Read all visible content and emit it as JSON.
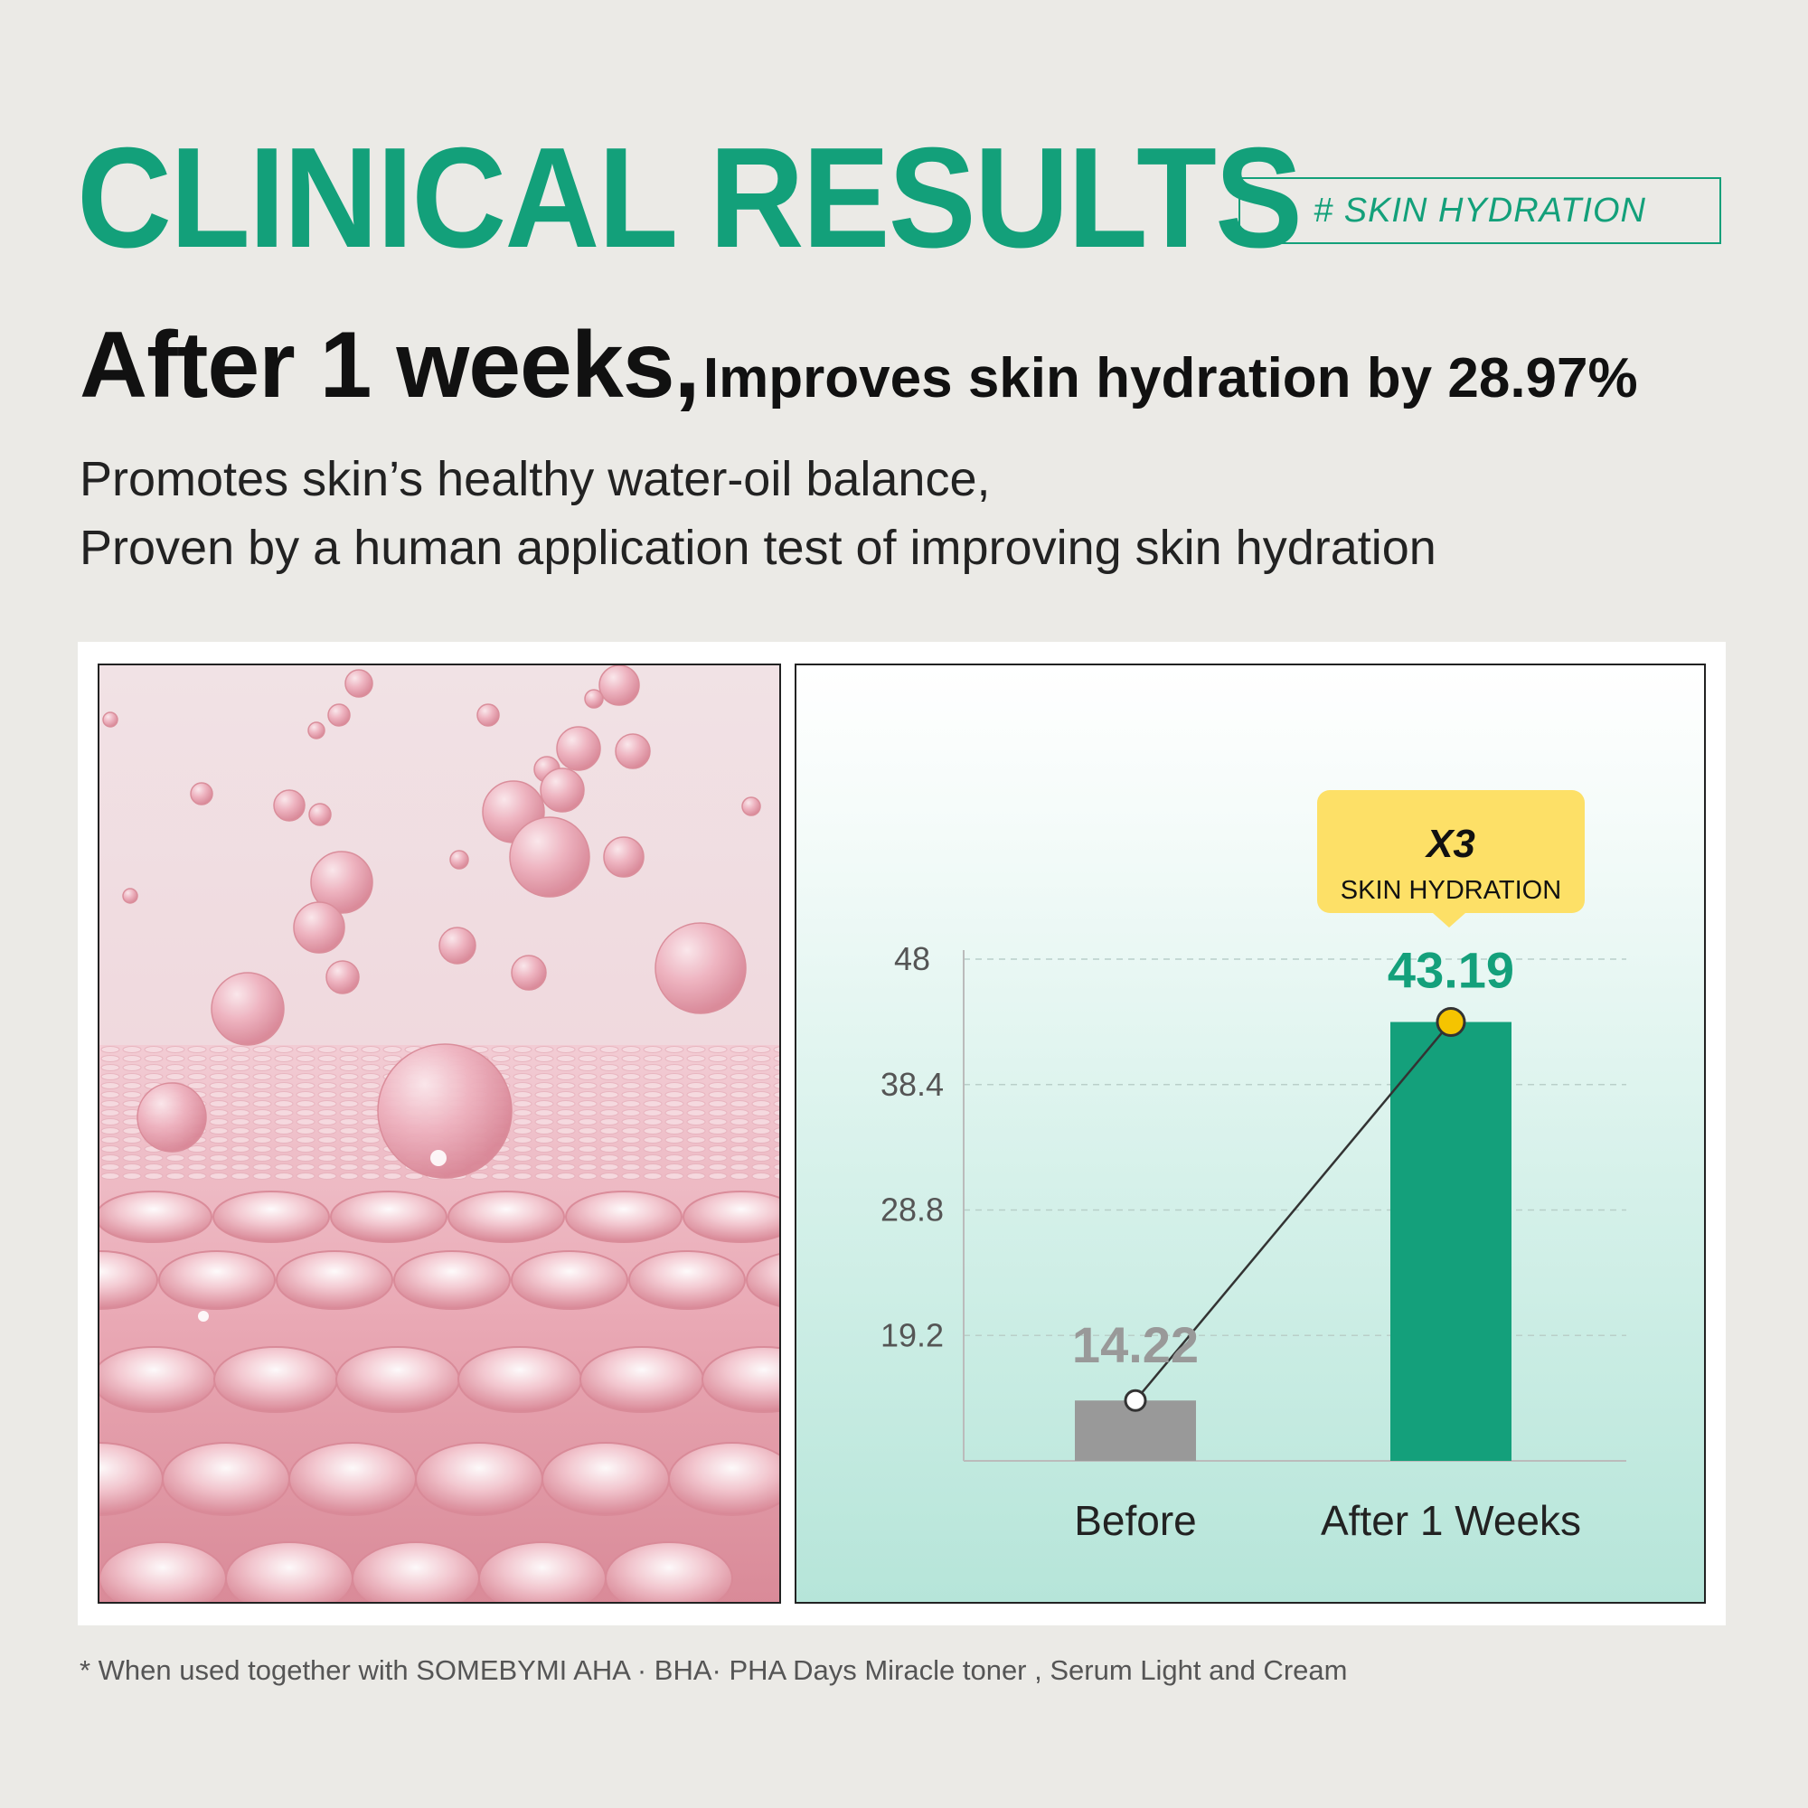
{
  "header": {
    "title": "CLINICAL RESULTS",
    "tag": "# SKIN HYDRATION",
    "headline_big": "After 1 weeks,",
    "headline_small": "Improves skin hydration by 28.97%",
    "desc_line1": "Promotes skin’s healthy water-oil balance,",
    "desc_line2": "Proven by a human application test of improving skin hydration"
  },
  "photo": {
    "icon": "hydration-skin-illustration"
  },
  "callout": {
    "multiplier": "X3",
    "label": "SKIN HYDRATION"
  },
  "chart_data": {
    "type": "bar",
    "categories": [
      "Before",
      "After 1 Weeks"
    ],
    "values": [
      14.22,
      43.19
    ],
    "value_labels": [
      "14.22",
      "43.19"
    ],
    "yticks": [
      19.2,
      28.8,
      38.4,
      48
    ],
    "ytick_labels": [
      "19.2",
      "28.8",
      "38.4",
      "48"
    ],
    "ylim": [
      9.6,
      48
    ],
    "grid": true,
    "colors": {
      "before": "#999999",
      "after": "#14a07b",
      "marker": "#f5c400"
    }
  },
  "footnote": "* When used together with SOMEBYMI AHA · BHA· PHA Days Miracle toner , Serum Light and Cream",
  "colors": {
    "accent": "#13a07a",
    "background": "#ebeae6",
    "callout": "#fde067"
  }
}
